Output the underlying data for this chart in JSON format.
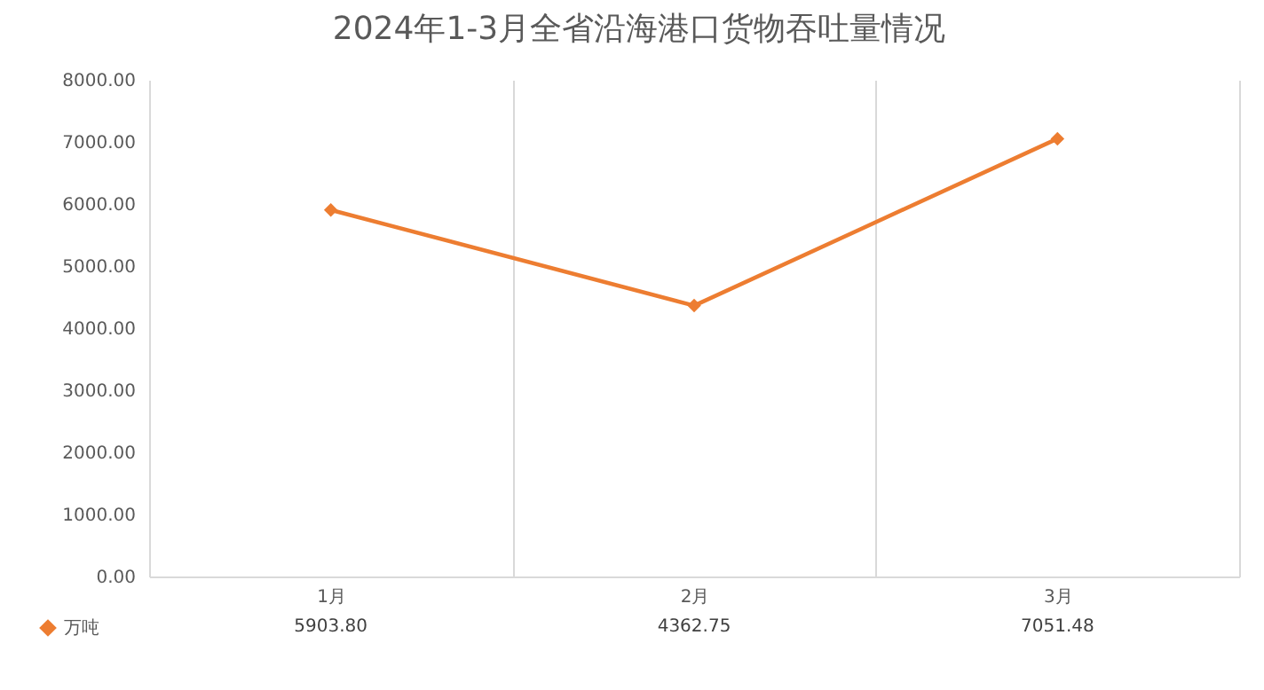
{
  "chart_data": {
    "type": "line",
    "title": "2024年1-3月全省沿海港口货物吞吐量情况",
    "categories": [
      "1月",
      "2月",
      "3月"
    ],
    "series": [
      {
        "name": "万吨",
        "color": "#ed7d31",
        "values": [
          5903.8,
          4362.75,
          7051.48
        ],
        "value_labels": [
          "5903.80",
          "4362.75",
          "7051.48"
        ]
      }
    ],
    "ylim": [
      0,
      8000
    ],
    "yticks": [
      {
        "value": 0,
        "label": "0.00"
      },
      {
        "value": 1000,
        "label": "1000.00"
      },
      {
        "value": 2000,
        "label": "2000.00"
      },
      {
        "value": 3000,
        "label": "3000.00"
      },
      {
        "value": 4000,
        "label": "4000.00"
      },
      {
        "value": 5000,
        "label": "5000.00"
      },
      {
        "value": 6000,
        "label": "6000.00"
      },
      {
        "value": 7000,
        "label": "7000.00"
      },
      {
        "value": 8000,
        "label": "8000.00"
      }
    ],
    "grid": "x",
    "legend": "bottom",
    "marker": "diamond",
    "line_style": "solid"
  }
}
